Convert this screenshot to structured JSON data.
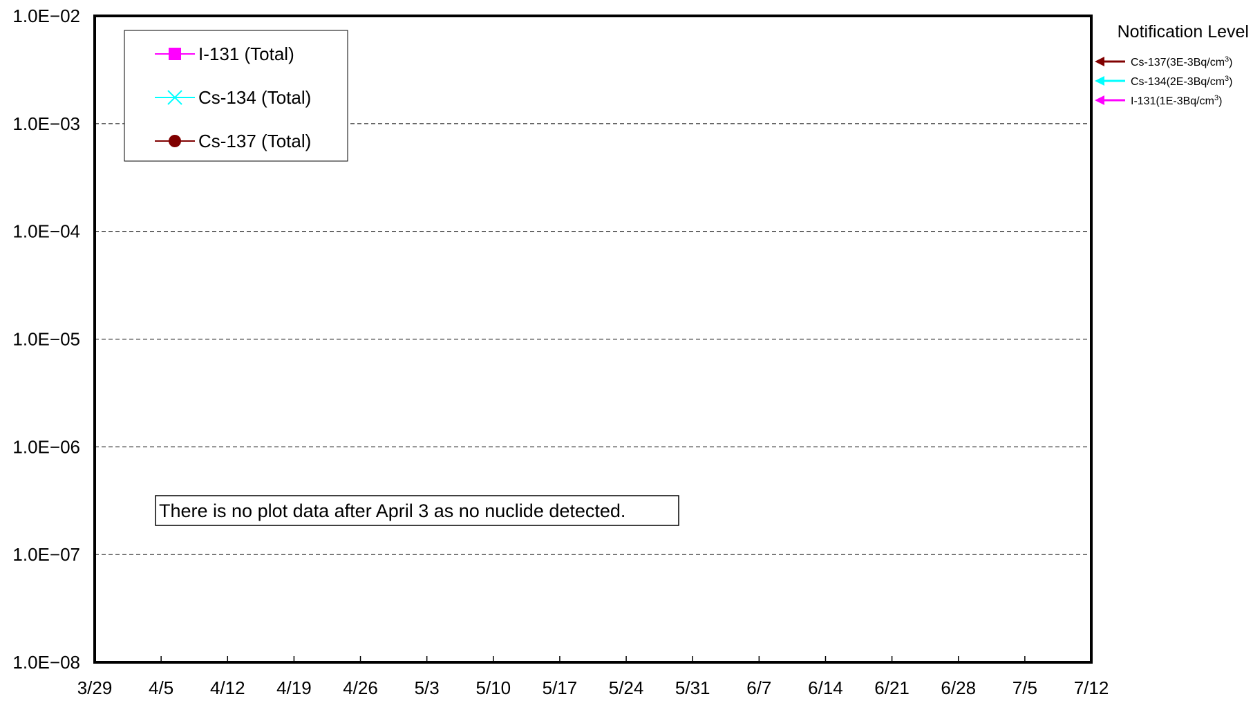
{
  "chart_data": {
    "type": "line",
    "title": "",
    "xlabel": "",
    "ylabel": "",
    "y_scale": "log",
    "ylim": [
      "1.0E-08",
      "1.0E-02"
    ],
    "y_ticks": [
      {
        "label": "1.0E−02",
        "exponent": -2
      },
      {
        "label": "1.0E−03",
        "exponent": -3
      },
      {
        "label": "1.0E−04",
        "exponent": -4
      },
      {
        "label": "1.0E−05",
        "exponent": -5
      },
      {
        "label": "1.0E−06",
        "exponent": -6
      },
      {
        "label": "1.0E−07",
        "exponent": -7
      },
      {
        "label": "1.0E−08",
        "exponent": -8
      }
    ],
    "x_ticks": [
      "3/29",
      "4/5",
      "4/12",
      "4/19",
      "4/26",
      "5/3",
      "5/10",
      "5/17",
      "5/24",
      "5/31",
      "6/7",
      "6/14",
      "6/21",
      "6/28",
      "7/5",
      "7/12"
    ],
    "grid": "horizontal dashed",
    "legend_position": "top-left",
    "series": [
      {
        "name": "I-131 (Total)",
        "color": "#ff00ff",
        "marker": "square",
        "values": []
      },
      {
        "name": "Cs-134 (Total)",
        "color": "#00ffff",
        "marker": "x",
        "values": []
      },
      {
        "name": "Cs-137 (Total)",
        "color": "#800000",
        "marker": "circle",
        "values": []
      }
    ],
    "annotation": "There is no plot data after April 3 as no nuclide detected.",
    "notification_level": {
      "title": "Notification Level",
      "items": [
        {
          "nuclide": "Cs-137",
          "value": "3E-3Bq/cm",
          "color": "#800000"
        },
        {
          "nuclide": "Cs-134",
          "value": "2E-3Bq/cm",
          "color": "#00ffff"
        },
        {
          "nuclide": "I-131",
          "value": "1E-3Bq/cm",
          "color": "#ff00ff"
        }
      ]
    }
  }
}
